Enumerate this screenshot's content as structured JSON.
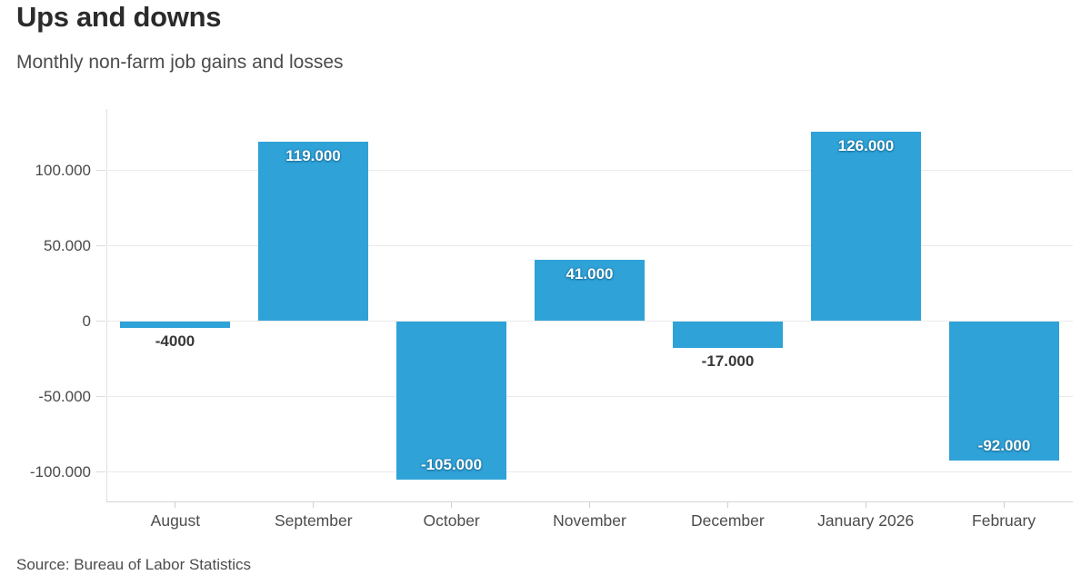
{
  "header": {
    "title": "Ups and downs",
    "subtitle": "Monthly non-farm job gains and losses"
  },
  "footer": {
    "source": "Source: Bureau of Labor Statistics"
  },
  "colors": {
    "bar": "#2fa2d8",
    "title_text": "#2b2b2b",
    "subtitle_text": "#4c4c4c",
    "axis_text": "#4a4a4a",
    "gridline": "#ebebeb",
    "in_bar_label": "#ffffff",
    "outside_label": "#383838"
  },
  "chart_data": {
    "type": "bar",
    "title": "Ups and downs",
    "subtitle": "Monthly non-farm job gains and losses",
    "source": "Source: Bureau of Labor Statistics",
    "categories": [
      "August",
      "September",
      "October",
      "November",
      "December",
      "January 2026",
      "February"
    ],
    "values": [
      -4000,
      119000,
      -105000,
      41000,
      -17000,
      126000,
      -92000
    ],
    "value_labels": [
      "-4000",
      "119.000",
      "-105.000",
      "41.000",
      "-17.000",
      "126.000",
      "-92.000"
    ],
    "y_ticks": [
      {
        "value": 100000,
        "label": "100.000"
      },
      {
        "value": 50000,
        "label": "50.000"
      },
      {
        "value": 0,
        "label": "0"
      },
      {
        "value": -50000,
        "label": "-50.000"
      },
      {
        "value": -100000,
        "label": "-100.000"
      }
    ],
    "ylim": [
      -120500,
      141000
    ],
    "grid": true,
    "legend": "none",
    "bar_color": "#2fa2d8",
    "xlabel": "",
    "ylabel": ""
  }
}
